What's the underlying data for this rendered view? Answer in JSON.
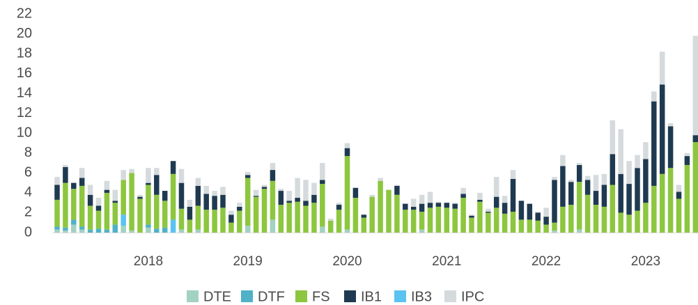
{
  "chart_data": {
    "type": "stacked_bar",
    "categories": [
      null,
      null,
      null,
      null,
      null,
      null,
      null,
      null,
      null,
      null,
      null,
      "2018",
      null,
      null,
      null,
      null,
      null,
      null,
      null,
      null,
      null,
      null,
      null,
      "2019",
      null,
      null,
      null,
      null,
      null,
      null,
      null,
      null,
      null,
      null,
      null,
      "2020",
      null,
      null,
      null,
      null,
      null,
      null,
      null,
      null,
      null,
      null,
      null,
      "2021",
      null,
      null,
      null,
      null,
      null,
      null,
      null,
      null,
      null,
      null,
      null,
      "2022",
      null,
      null,
      null,
      null,
      null,
      null,
      null,
      null,
      null,
      null,
      null,
      "2023",
      null,
      null,
      null,
      null,
      null,
      null
    ],
    "series": [
      {
        "name": "DTE",
        "color": "#a3d1c2",
        "values": [
          0.3,
          0.2,
          0.8,
          0.3,
          0,
          0,
          0,
          0,
          0.7,
          0.2,
          0,
          0.5,
          0,
          0,
          0,
          0.3,
          0,
          0.3,
          0,
          0,
          0,
          0,
          0,
          0.7,
          0,
          0,
          1.3,
          0,
          0,
          0,
          0,
          0,
          0.6,
          0,
          0,
          0.3,
          0,
          0,
          0,
          0,
          0,
          0,
          0,
          0,
          0.3,
          0,
          0,
          0,
          0,
          0,
          0,
          0,
          0,
          0,
          0,
          0,
          0,
          0,
          0,
          0,
          0.2,
          0,
          0,
          0.3,
          0,
          0,
          0,
          0,
          0,
          0,
          0,
          0,
          0,
          0,
          0,
          0,
          0,
          0
        ]
      },
      {
        "name": "DTF",
        "color": "#4fb2c6",
        "values": [
          0.3,
          0.3,
          0.5,
          0.3,
          0.3,
          0.4,
          0.3,
          0.8,
          0,
          0,
          0,
          0.3,
          0.4,
          0.5,
          0,
          0,
          0,
          0,
          0,
          0,
          0,
          0,
          0,
          0,
          0,
          0,
          0,
          0,
          0,
          0,
          0,
          0,
          0,
          0,
          0,
          0,
          0,
          0,
          0,
          0,
          0,
          0,
          0,
          0,
          0,
          0,
          0,
          0,
          0,
          0,
          0,
          0,
          0,
          0,
          0,
          0,
          0,
          0,
          0,
          0,
          0,
          0,
          0,
          0,
          0,
          0,
          0,
          0,
          0,
          0,
          0,
          0,
          0,
          0,
          0,
          0,
          0,
          0
        ]
      },
      {
        "name": "FS",
        "color": "#8dc63f",
        "values": [
          2.7,
          4.5,
          3.1,
          4.1,
          2.4,
          1.8,
          3.7,
          2.2,
          3.5,
          5.8,
          3.4,
          4.0,
          3.4,
          2.7,
          4.6,
          2.1,
          1.3,
          2.4,
          2.3,
          2.3,
          2.5,
          1.0,
          2.2,
          4.8,
          3.6,
          4.4,
          3.9,
          2.8,
          3.0,
          3.1,
          2.7,
          3.0,
          4.3,
          1.2,
          2.3,
          7.4,
          3.5,
          1.5,
          3.6,
          5.2,
          4.3,
          3.8,
          2.3,
          2.3,
          1.8,
          2.5,
          2.6,
          2.5,
          2.4,
          3.5,
          1.5,
          3.1,
          2.0,
          2.5,
          1.9,
          2.1,
          1.3,
          1.3,
          1.2,
          0.8,
          0.8,
          2.6,
          2.8,
          4.8,
          3.8,
          2.8,
          2.6,
          4.8,
          2.0,
          1.8,
          2.2,
          3.0,
          4.7,
          5.9,
          6.5,
          3.4,
          6.8,
          9.1
        ]
      },
      {
        "name": "IB1",
        "color": "#1f3a50",
        "values": [
          1.5,
          1.6,
          0.6,
          0.8,
          1.1,
          0.5,
          0.3,
          0.2,
          0,
          0,
          0.2,
          0.2,
          2.0,
          1.0,
          1.3,
          2.6,
          1.3,
          2.0,
          1.6,
          1.4,
          1.3,
          0.8,
          0.4,
          0.3,
          0.1,
          0.2,
          1.1,
          1.4,
          0.2,
          0.4,
          0.5,
          0.8,
          0.4,
          0,
          0.5,
          0.8,
          1.0,
          0.3,
          0,
          0,
          0,
          0.9,
          0.6,
          0.3,
          0.8,
          0.5,
          0.4,
          0.5,
          0.5,
          0.4,
          0.2,
          0.2,
          0.1,
          1.1,
          1.1,
          3.3,
          1.9,
          1.6,
          0.8,
          0.8,
          4.3,
          4.1,
          2.3,
          1.7,
          1.5,
          1.4,
          2.2,
          3.1,
          3.9,
          3.1,
          4.3,
          4.4,
          8.5,
          9.0,
          4.2,
          0.7,
          0.9,
          0.7
        ]
      },
      {
        "name": "IB3",
        "color": "#5bc3ef",
        "values": [
          0,
          0,
          0,
          0,
          0,
          0,
          0,
          0,
          1.1,
          0,
          0,
          0,
          0,
          0,
          1.3,
          0,
          0,
          0,
          0,
          0,
          0,
          0,
          0,
          0,
          0,
          0,
          0,
          0,
          0,
          0,
          0,
          0,
          0,
          0,
          0,
          0,
          0,
          0,
          0,
          0,
          0,
          0,
          0,
          0,
          0,
          0,
          0,
          0,
          0,
          0,
          0,
          0,
          0,
          0,
          0,
          0,
          0,
          0,
          0,
          0,
          0,
          0,
          0,
          0,
          0,
          0,
          0,
          0,
          0,
          0,
          0,
          0,
          0,
          0,
          0,
          0,
          0,
          0
        ]
      },
      {
        "name": "IPC",
        "color": "#d5dadd",
        "values": [
          0.8,
          0.2,
          0,
          1.0,
          1.0,
          0.8,
          0.9,
          1.1,
          1.0,
          0.4,
          0.2,
          1.5,
          0.7,
          0,
          0,
          1.4,
          0.7,
          0.8,
          0.8,
          0.5,
          0.8,
          0.4,
          0.4,
          0.3,
          0.6,
          0.2,
          0.7,
          0.2,
          1.0,
          2.0,
          2.1,
          1.2,
          1.7,
          0.2,
          0.2,
          0.5,
          0,
          0,
          0.2,
          0.3,
          0,
          0.1,
          0,
          0.8,
          0.9,
          1.1,
          0.1,
          0,
          0.1,
          0.6,
          0.1,
          0.7,
          0.3,
          2.0,
          0.7,
          0.9,
          0,
          0,
          0.1,
          0.9,
          0.3,
          1.1,
          0.2,
          0.2,
          0.4,
          1.6,
          1.1,
          3.4,
          4.5,
          2.3,
          1.3,
          1.7,
          1.0,
          3.3,
          0.3,
          0.7,
          0.3,
          10.0
        ]
      }
    ],
    "ylim": [
      0,
      22
    ],
    "yticks": [
      0,
      2,
      4,
      6,
      8,
      10,
      12,
      14,
      16,
      18,
      20,
      22
    ],
    "grid": false
  }
}
